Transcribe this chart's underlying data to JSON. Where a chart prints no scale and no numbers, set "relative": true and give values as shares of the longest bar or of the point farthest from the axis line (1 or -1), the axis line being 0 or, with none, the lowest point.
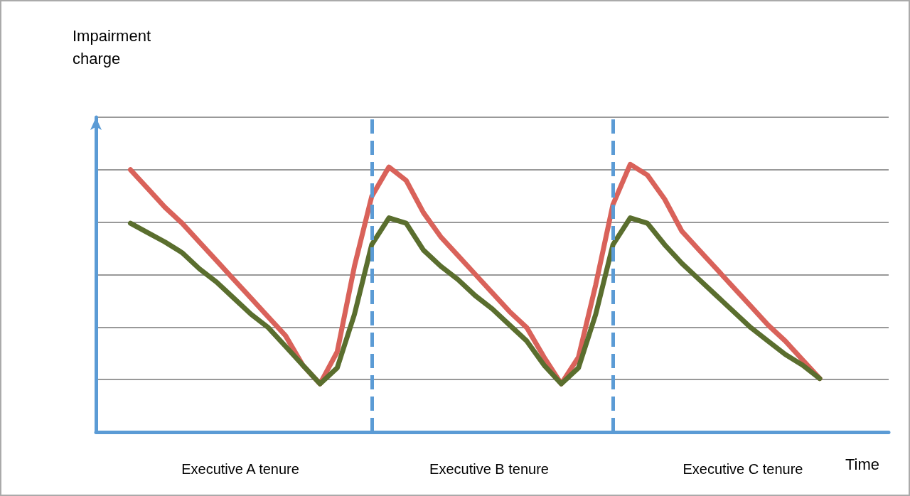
{
  "chart_data": {
    "type": "line",
    "relative": true,
    "xlabel": "Time",
    "grid": "y",
    "marker": "none",
    "line_style": "solid",
    "categories": [
      null,
      null,
      null,
      null,
      null,
      null,
      null,
      null,
      null,
      null,
      null,
      null,
      null,
      null,
      null,
      null,
      null,
      null,
      null,
      null,
      null,
      null,
      null,
      null,
      null,
      null,
      null,
      null,
      null,
      null,
      null,
      null,
      null,
      null,
      null,
      null,
      null,
      null,
      null,
      null,
      null,
      null,
      null,
      null,
      null,
      null,
      null
    ],
    "series": [
      {
        "color": "#d9625a",
        "values": [
          null,
          null,
          0.98,
          0.91,
          0.84,
          0.78,
          0.71,
          0.64,
          0.57,
          0.5,
          0.43,
          0.36,
          0.25,
          0.18,
          0.3,
          0.62,
          0.88,
          0.99,
          0.94,
          0.82,
          0.73,
          0.66,
          0.59,
          0.52,
          0.45,
          0.39,
          0.28,
          0.18,
          0.28,
          0.55,
          0.85,
          1.0,
          0.96,
          0.87,
          0.75,
          0.68,
          0.61,
          0.54,
          0.47,
          0.4,
          0.34,
          0.27,
          0.2,
          null,
          null,
          null,
          null
        ]
      },
      {
        "color": "#5a6e2e",
        "values": [
          null,
          null,
          0.78,
          0.745,
          0.71,
          0.67,
          0.61,
          0.56,
          0.5,
          0.44,
          0.39,
          0.32,
          0.25,
          0.18,
          0.24,
          0.44,
          0.7,
          0.8,
          0.78,
          0.68,
          0.62,
          0.57,
          0.51,
          0.46,
          0.4,
          0.34,
          0.25,
          0.18,
          0.24,
          0.44,
          0.7,
          0.8,
          0.78,
          0.7,
          0.63,
          0.57,
          0.51,
          0.45,
          0.39,
          0.34,
          0.29,
          0.25,
          0.2,
          null,
          null,
          null,
          null
        ]
      }
    ],
    "annotations": [
      "Impairment\ncharge",
      "Executive A tenure",
      "Executive B tenure",
      "Executive C tenure"
    ]
  }
}
